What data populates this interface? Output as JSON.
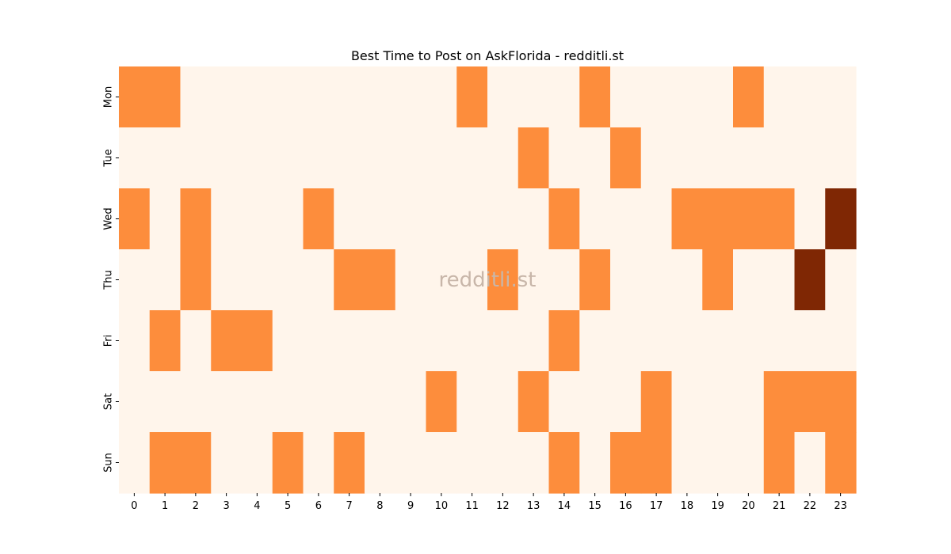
{
  "chart_data": {
    "type": "heatmap",
    "title": "Best Time to Post on AskFlorida - redditli.st",
    "watermark": "redditli.st",
    "xlabel": "",
    "ylabel": "",
    "x": [
      "0",
      "1",
      "2",
      "3",
      "4",
      "5",
      "6",
      "7",
      "8",
      "9",
      "10",
      "11",
      "12",
      "13",
      "14",
      "15",
      "16",
      "17",
      "18",
      "19",
      "20",
      "21",
      "22",
      "23"
    ],
    "y": [
      "Mon",
      "Tue",
      "Wed",
      "Thu",
      "Fri",
      "Sat",
      "Sun"
    ],
    "values": [
      [
        1,
        1,
        0,
        0,
        0,
        0,
        0,
        0,
        0,
        0,
        0,
        1,
        0,
        0,
        0,
        1,
        0,
        0,
        0,
        0,
        1,
        0,
        0,
        0
      ],
      [
        0,
        0,
        0,
        0,
        0,
        0,
        0,
        0,
        0,
        0,
        0,
        0,
        0,
        1,
        0,
        0,
        1,
        0,
        0,
        0,
        0,
        0,
        0,
        0
      ],
      [
        1,
        0,
        1,
        0,
        0,
        0,
        1,
        0,
        0,
        0,
        0,
        0,
        0,
        0,
        1,
        0,
        0,
        0,
        1,
        1,
        1,
        1,
        0,
        2
      ],
      [
        0,
        0,
        1,
        0,
        0,
        0,
        0,
        1,
        1,
        0,
        0,
        0,
        1,
        0,
        0,
        1,
        0,
        0,
        0,
        1,
        0,
        0,
        2,
        0
      ],
      [
        0,
        1,
        0,
        1,
        1,
        0,
        0,
        0,
        0,
        0,
        0,
        0,
        0,
        0,
        1,
        0,
        0,
        0,
        0,
        0,
        0,
        0,
        0,
        0
      ],
      [
        0,
        0,
        0,
        0,
        0,
        0,
        0,
        0,
        0,
        0,
        1,
        0,
        0,
        1,
        0,
        0,
        0,
        1,
        0,
        0,
        0,
        1,
        1,
        1
      ],
      [
        0,
        1,
        1,
        0,
        0,
        1,
        0,
        1,
        0,
        0,
        0,
        0,
        0,
        0,
        1,
        0,
        1,
        1,
        0,
        0,
        0,
        1,
        0,
        1
      ]
    ],
    "colormap": {
      "0": "#fff5eb",
      "1": "#fd8d3c",
      "2": "#7f2704"
    },
    "colorbar": false,
    "grid": false
  }
}
